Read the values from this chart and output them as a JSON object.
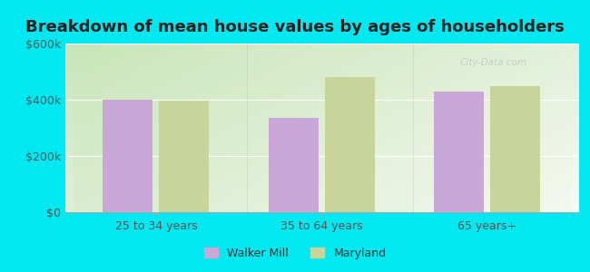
{
  "title": "Breakdown of mean house values by ages of householders",
  "categories": [
    "25 to 34 years",
    "35 to 64 years",
    "65 years+"
  ],
  "walker_mill": [
    400000,
    335000,
    430000
  ],
  "maryland": [
    397000,
    480000,
    450000
  ],
  "walker_mill_color": "#c9a8d8",
  "maryland_color": "#c8d49a",
  "ylim": [
    0,
    600000
  ],
  "yticks": [
    0,
    200000,
    400000,
    600000
  ],
  "ytick_labels": [
    "$0",
    "$200k",
    "$400k",
    "$600k"
  ],
  "background_outer": "#00e8f0",
  "background_inner_topleft": "#c8e6c0",
  "background_inner_bottomright": "#f5f5f0",
  "legend_walker": "Walker Mill",
  "legend_maryland": "Maryland",
  "bar_width": 0.3,
  "title_fontsize": 13,
  "tick_fontsize": 9,
  "legend_fontsize": 9,
  "watermark": "City-Data.com"
}
